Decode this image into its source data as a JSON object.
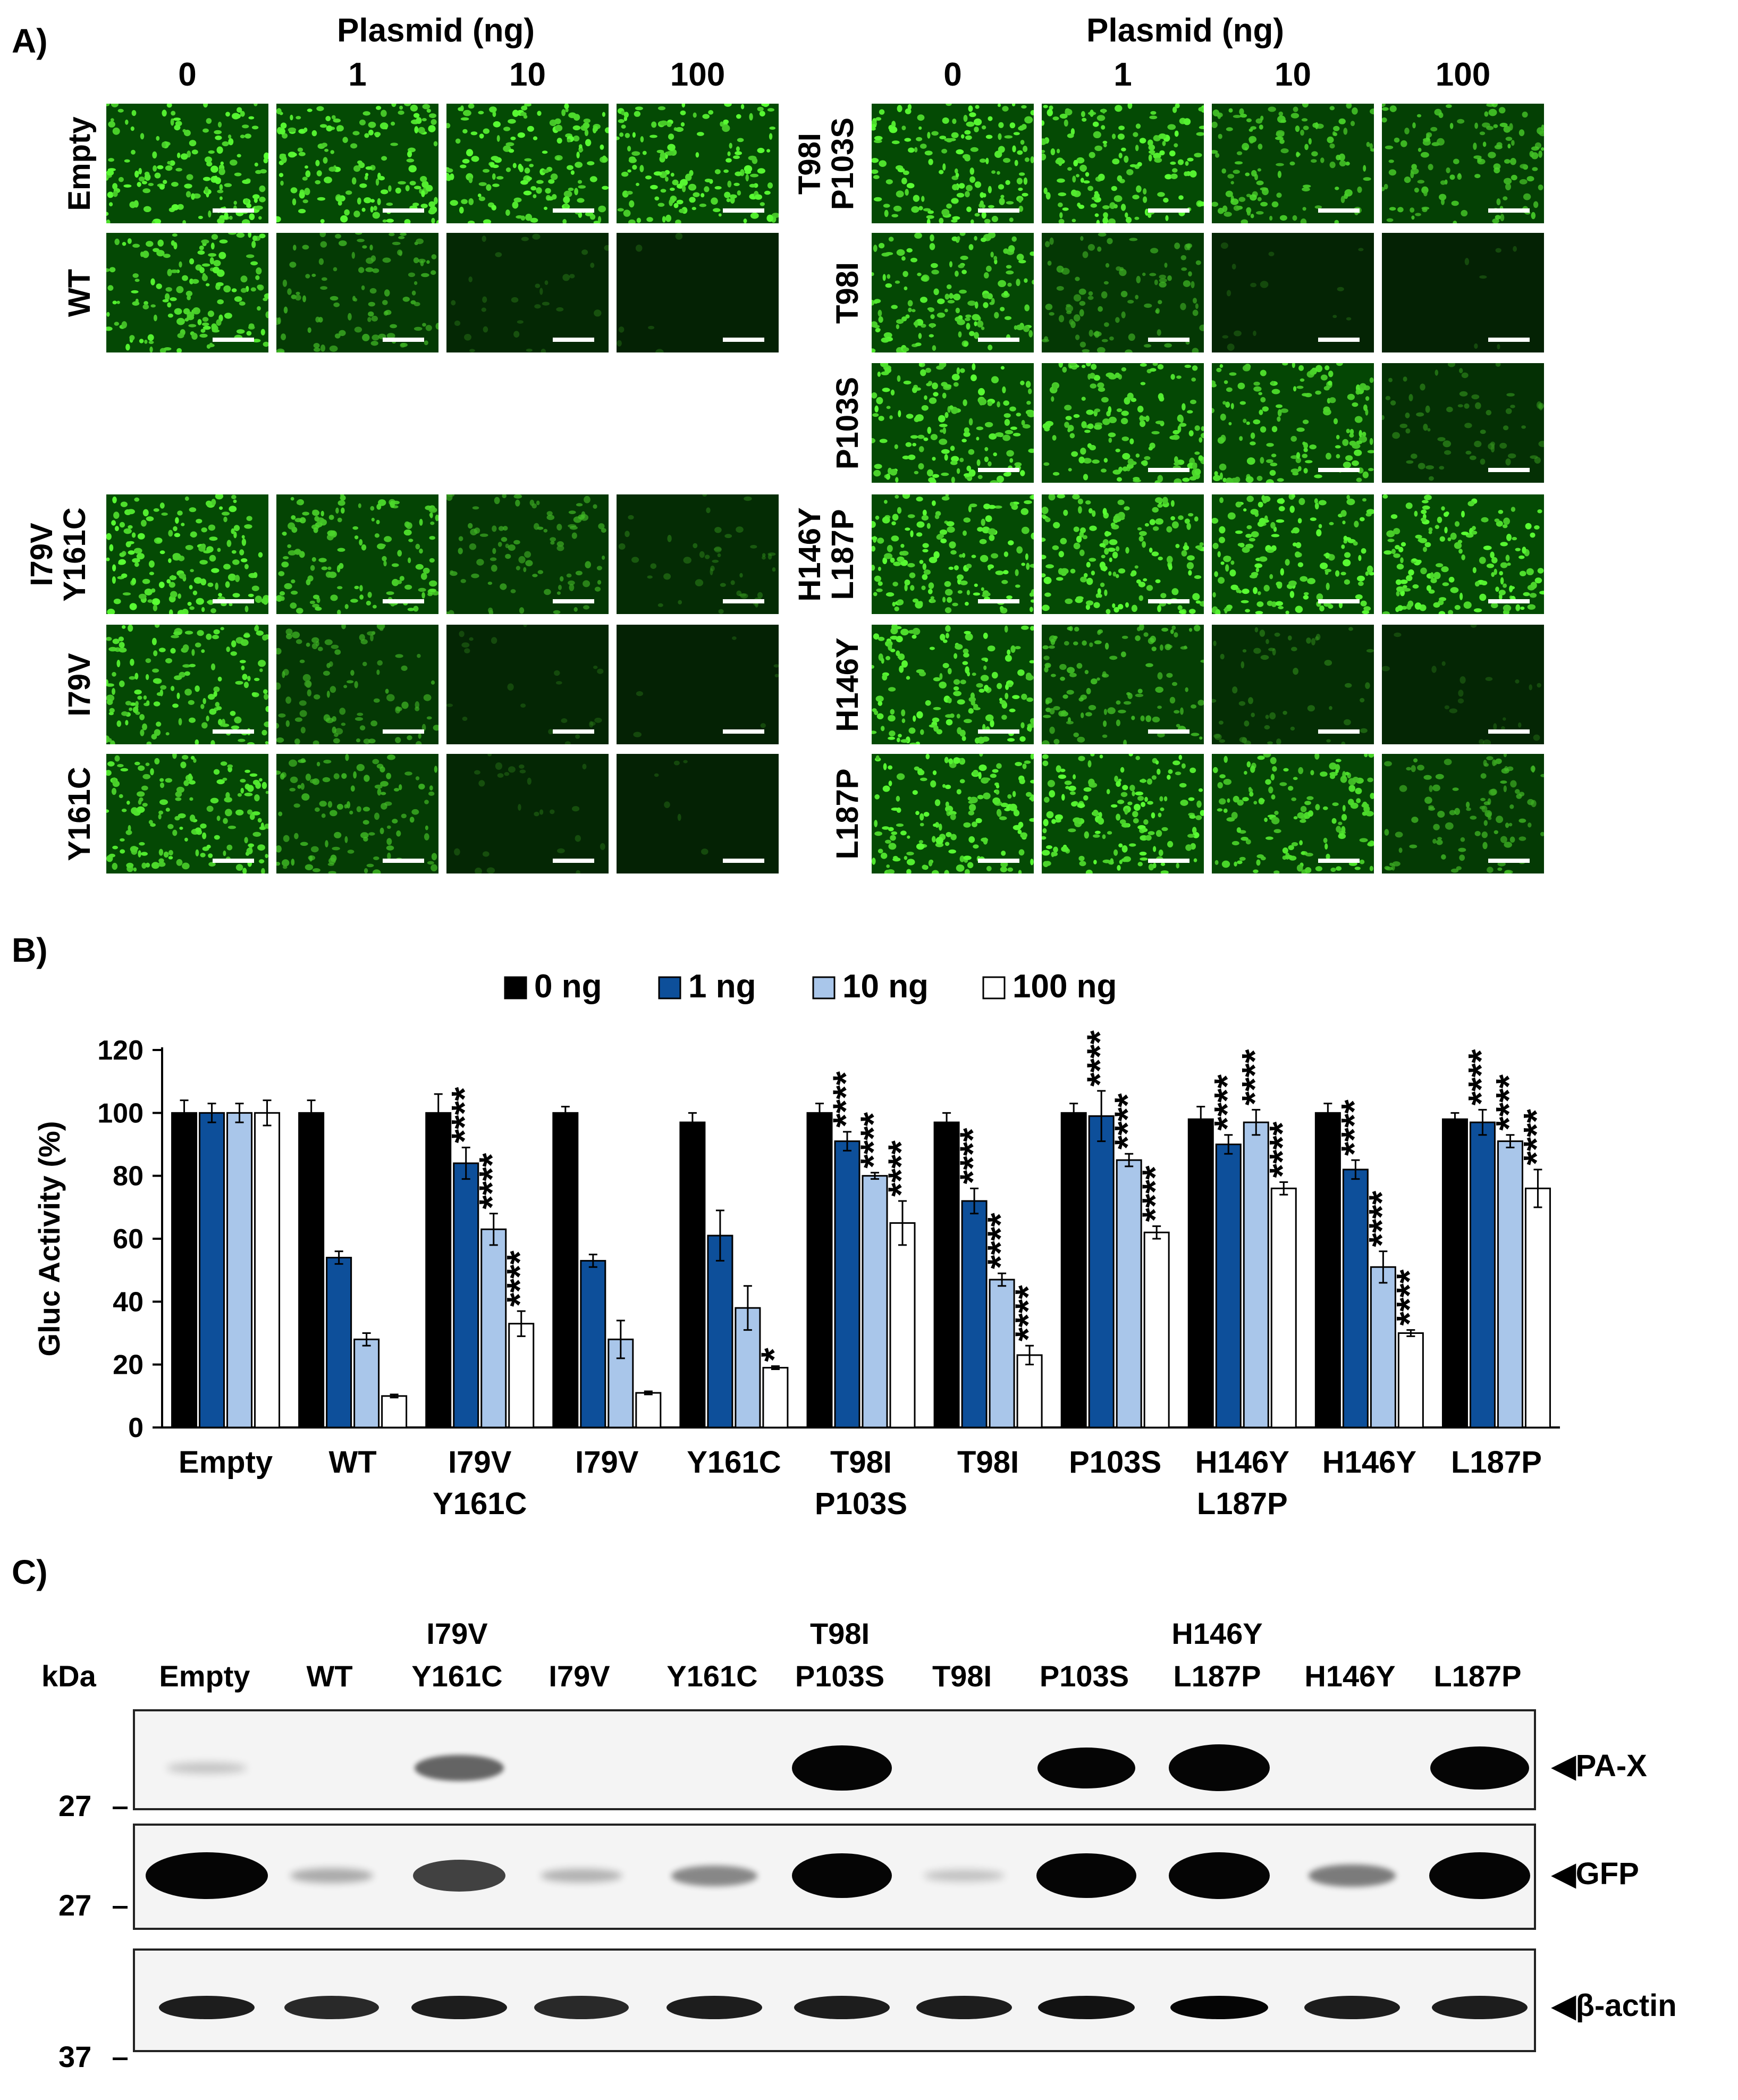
{
  "panelA": {
    "letter": "A)",
    "header": "Plasmid (ng)",
    "doses": [
      "0",
      "1",
      "10",
      "100"
    ],
    "left_rows": [
      {
        "label": [
          "Empty"
        ],
        "intensity": [
          1.0,
          1.0,
          1.0,
          1.0
        ]
      },
      {
        "label": [
          "WT"
        ],
        "intensity": [
          0.95,
          0.6,
          0.15,
          0.0
        ]
      },
      {
        "label": [
          "I79V",
          "Y161C"
        ],
        "intensity": [
          1.0,
          0.85,
          0.55,
          0.25
        ]
      },
      {
        "label": [
          "I79V"
        ],
        "intensity": [
          0.95,
          0.55,
          0.1,
          0.0
        ]
      },
      {
        "label": [
          "Y161C"
        ],
        "intensity": [
          0.95,
          0.65,
          0.12,
          0.0
        ]
      }
    ],
    "right_rows": [
      {
        "label": [
          "T98I",
          "P103S"
        ],
        "intensity": [
          1.0,
          1.0,
          0.8,
          0.75
        ]
      },
      {
        "label": [
          "T98I"
        ],
        "intensity": [
          0.95,
          0.55,
          0.05,
          0.0
        ]
      },
      {
        "label": [
          "P103S"
        ],
        "intensity": [
          1.0,
          0.95,
          0.9,
          0.35
        ]
      },
      {
        "label": [
          "H146Y",
          "L187P"
        ],
        "intensity": [
          1.0,
          1.0,
          1.0,
          1.0
        ]
      },
      {
        "label": [
          "H146Y"
        ],
        "intensity": [
          1.0,
          0.7,
          0.3,
          0.1
        ]
      },
      {
        "label": [
          "L187P"
        ],
        "intensity": [
          1.0,
          1.0,
          0.9,
          0.6
        ]
      }
    ]
  },
  "chart_data": {
    "type": "bar",
    "letter": "B)",
    "ylabel": "Gluc Activity (%)",
    "ylim": [
      0,
      120
    ],
    "yticks": [
      "0",
      "20",
      "40",
      "60",
      "80",
      "100",
      "120"
    ],
    "categories": [
      [
        "Empty"
      ],
      [
        "WT"
      ],
      [
        "I79V",
        "Y161C"
      ],
      [
        "I79V"
      ],
      [
        "Y161C"
      ],
      [
        "T98I",
        "P103S"
      ],
      [
        "T98I"
      ],
      [
        "P103S"
      ],
      [
        "H146Y",
        "L187P"
      ],
      [
        "H146Y"
      ],
      [
        "L187P"
      ]
    ],
    "legend": [
      "0 ng",
      "1 ng",
      "10 ng",
      "100 ng"
    ],
    "legend_position": "top",
    "colors": [
      "#000000",
      "#0d4f9a",
      "#a9c6ea",
      "#ffffff"
    ],
    "series": [
      {
        "name": "0 ng",
        "values": [
          100,
          100,
          100,
          100,
          97,
          100,
          97,
          100,
          98,
          100,
          98
        ],
        "errors": [
          4,
          4,
          6,
          2,
          3,
          3,
          3,
          3,
          4,
          3,
          2
        ]
      },
      {
        "name": "1 ng",
        "values": [
          100,
          54,
          84,
          53,
          61,
          91,
          72,
          99,
          90,
          82,
          97
        ],
        "errors": [
          3,
          2,
          5,
          2,
          8,
          3,
          4,
          8,
          3,
          3,
          4
        ]
      },
      {
        "name": "10 ng",
        "values": [
          100,
          28,
          63,
          28,
          38,
          80,
          47,
          85,
          97,
          51,
          91
        ],
        "errors": [
          3,
          2,
          5,
          6,
          7,
          1,
          2,
          2,
          4,
          5,
          2
        ]
      },
      {
        "name": "100 ng",
        "values": [
          100,
          10,
          33,
          11,
          19,
          65,
          23,
          62,
          76,
          30,
          76
        ],
        "errors": [
          4,
          0.5,
          4,
          0.5,
          0.5,
          7,
          3,
          2,
          2,
          1,
          6
        ]
      }
    ],
    "significance": [
      [
        "",
        "",
        "",
        ""
      ],
      [
        "",
        "",
        "",
        ""
      ],
      [
        "",
        "****",
        "****",
        "****"
      ],
      [
        "",
        "",
        "",
        ""
      ],
      [
        "",
        "",
        "",
        "*"
      ],
      [
        "",
        "****",
        "****",
        "****"
      ],
      [
        "",
        "****",
        "****",
        "****"
      ],
      [
        "",
        "****",
        "****",
        "****"
      ],
      [
        "",
        "****",
        "****",
        "****"
      ],
      [
        "",
        "****",
        "****",
        "****"
      ],
      [
        "",
        "****",
        "****",
        "****"
      ]
    ]
  },
  "panelC": {
    "letter": "C)",
    "kda_label": "kDa",
    "lanes": [
      [
        "Empty"
      ],
      [
        "WT"
      ],
      [
        "I79V",
        "Y161C"
      ],
      [
        "I79V"
      ],
      [
        "Y161C"
      ],
      [
        "T98I",
        "P103S"
      ],
      [
        "T98I"
      ],
      [
        "P103S"
      ],
      [
        "H146Y",
        "L187P"
      ],
      [
        "H146Y"
      ],
      [
        "L187P"
      ]
    ],
    "blots": [
      {
        "name": "◀PA-X",
        "marker": "27",
        "intensity": [
          0.05,
          0.0,
          0.45,
          0.0,
          0.0,
          0.95,
          0.0,
          0.85,
          1.0,
          0.0,
          0.9
        ]
      },
      {
        "name": "◀GFP",
        "marker": "27",
        "intensity": [
          1.0,
          0.15,
          0.6,
          0.12,
          0.3,
          0.95,
          0.06,
          0.95,
          1.0,
          0.35,
          1.0
        ]
      },
      {
        "name": "◀β-actin",
        "marker": "37",
        "intensity": [
          0.75,
          0.7,
          0.75,
          0.7,
          0.75,
          0.75,
          0.75,
          0.8,
          0.85,
          0.75,
          0.75
        ]
      }
    ]
  }
}
